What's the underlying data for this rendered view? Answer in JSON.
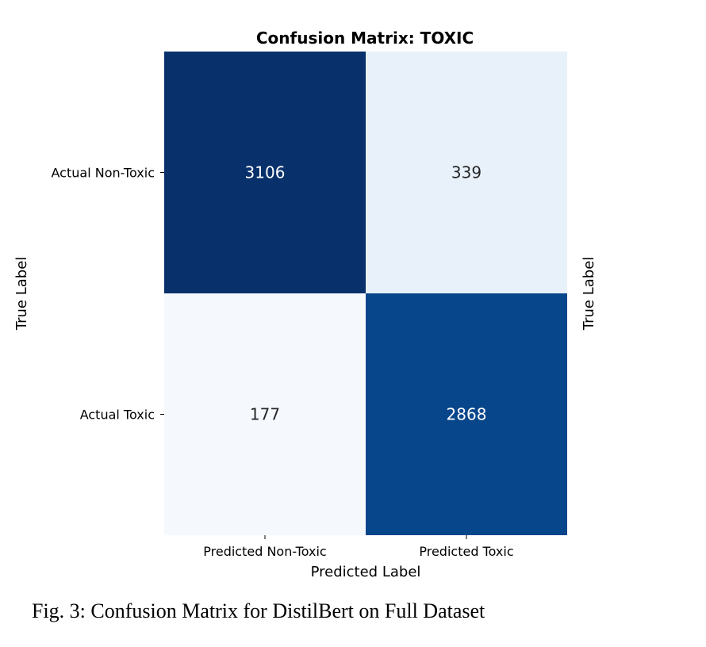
{
  "chart_data": {
    "type": "heatmap",
    "title": "Confusion Matrix: TOXIC",
    "xlabel": "Predicted Label",
    "ylabel": "True Label",
    "right_label": "True Label",
    "x_categories": [
      "Predicted Non-Toxic",
      "Predicted Toxic"
    ],
    "y_categories": [
      "Actual Non-Toxic",
      "Actual Toxic"
    ],
    "values": [
      [
        3106,
        339
      ],
      [
        177,
        2868
      ]
    ],
    "colormap": "Blues",
    "colorbar": false,
    "cell_colors": [
      [
        "#08306b",
        "#e8f1fa"
      ],
      [
        "#f5f9fe",
        "#08468b"
      ]
    ],
    "annotation_colors": [
      [
        "#ffffff",
        "#262626"
      ],
      [
        "#262626",
        "#ffffff"
      ]
    ]
  },
  "caption": "Fig. 3: Confusion Matrix for DistilBert on Full Dataset"
}
